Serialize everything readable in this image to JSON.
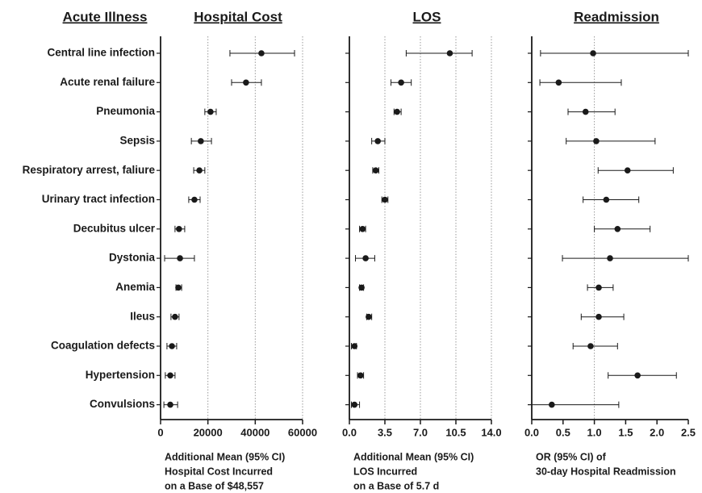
{
  "row_header": "Acute Illness",
  "chart_data": [
    {
      "type": "forest",
      "title": "Hospital Cost",
      "categories": [
        "Central line infection",
        "Acute renal failure",
        "Pneumonia",
        "Sepsis",
        "Respiratory arrest, faliure",
        "Urinary tract infection",
        "Decubitus ulcer",
        "Dystonia",
        "Anemia",
        "Ileus",
        "Coagulation defects",
        "Hypertension",
        "Convulsions"
      ],
      "values": [
        42600,
        36100,
        21100,
        17000,
        16400,
        14300,
        7800,
        8200,
        7500,
        6100,
        4800,
        4100,
        4100
      ],
      "lower": [
        29300,
        30000,
        18700,
        13000,
        14000,
        11900,
        6100,
        1700,
        6500,
        4400,
        2700,
        2000,
        1400
      ],
      "upper": [
        56600,
        42600,
        23500,
        21500,
        18700,
        16700,
        10200,
        14300,
        8900,
        7800,
        6800,
        6100,
        7200
      ],
      "xlim": [
        0,
        60000
      ],
      "xticks": [
        0,
        20000,
        40000,
        60000
      ],
      "grid": true,
      "color": "#1a1a1a",
      "xlabel": [
        "Additional Mean (95% CI)",
        "Hospital Cost Incurred",
        "on a Base of $48,557"
      ]
    },
    {
      "type": "forest",
      "title": "LOS",
      "values": [
        9.9,
        5.1,
        4.7,
        2.8,
        2.6,
        3.5,
        1.3,
        1.6,
        1.2,
        1.9,
        0.5,
        1.1,
        0.5
      ],
      "lower": [
        5.6,
        4.1,
        4.4,
        2.2,
        2.3,
        3.2,
        1.0,
        0.6,
        1.0,
        1.7,
        0.2,
        0.8,
        0.2
      ],
      "upper": [
        12.1,
        6.1,
        5.1,
        3.5,
        2.9,
        3.8,
        1.6,
        2.5,
        1.4,
        2.2,
        0.7,
        1.4,
        1.0
      ],
      "xlim": [
        0,
        14
      ],
      "xticks": [
        {
          "value": 0,
          "label": "0.0"
        },
        {
          "value": 3.5,
          "label": "3.5"
        },
        {
          "value": 7,
          "label": "7.0"
        },
        {
          "value": 10.5,
          "label": "10.5"
        },
        {
          "value": 14,
          "label": "14.0"
        }
      ],
      "grid": true,
      "color": "#1a1a1a",
      "xlabel": [
        "Additional Mean (95% CI)",
        "LOS Incurred",
        "on a Base of 5.7 d"
      ]
    },
    {
      "type": "forest",
      "title": "Readmission",
      "values": [
        0.98,
        0.43,
        0.86,
        1.03,
        1.53,
        1.19,
        1.37,
        1.25,
        1.07,
        1.07,
        0.94,
        1.69,
        0.32
      ],
      "lower": [
        0.14,
        0.13,
        0.58,
        0.55,
        1.06,
        0.82,
        1.0,
        0.49,
        0.89,
        0.79,
        0.66,
        1.22,
        0.0
      ],
      "upper": [
        2.5,
        1.43,
        1.33,
        1.97,
        2.26,
        1.71,
        1.89,
        2.5,
        1.3,
        1.47,
        1.37,
        2.31,
        1.39
      ],
      "xlim": [
        0,
        2.5
      ],
      "xticks": [
        {
          "value": 0,
          "label": "0.0"
        },
        {
          "value": 0.5,
          "label": "0.5"
        },
        {
          "value": 1,
          "label": "1.0"
        },
        {
          "value": 1.5,
          "label": "1.5"
        },
        {
          "value": 2,
          "label": "2.0"
        },
        {
          "value": 2.5,
          "label": "2.5"
        }
      ],
      "grid": false,
      "reference": 1,
      "color": "#1a1a1a",
      "xlabel": [
        "OR (95% CI) of",
        "30-day Hospital Readmission"
      ]
    }
  ]
}
